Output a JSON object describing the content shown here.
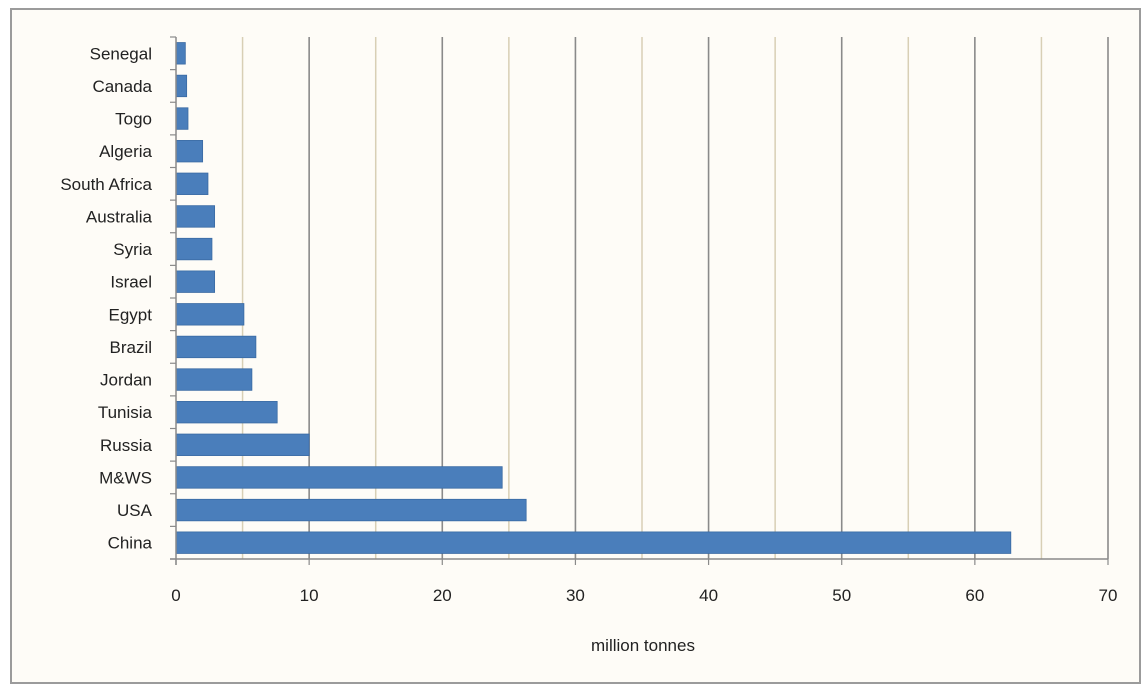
{
  "chart_data": {
    "type": "bar",
    "orientation": "horizontal",
    "categories": [
      "Senegal",
      "Canada",
      "Togo",
      "Algeria",
      "South Africa",
      "Australia",
      "Syria",
      "Israel",
      "Egypt",
      "Brazil",
      "Jordan",
      "Tunisia",
      "Russia",
      "M&WS",
      "USA",
      "China"
    ],
    "values": [
      0.7,
      0.8,
      0.9,
      2.0,
      2.4,
      2.9,
      2.7,
      2.9,
      5.1,
      6.0,
      5.7,
      7.6,
      10.0,
      24.5,
      26.3,
      62.7
    ],
    "title": "",
    "xlabel": "million tonnes",
    "ylabel": "",
    "xlim": [
      0,
      70
    ],
    "xticks": [
      0,
      10,
      20,
      30,
      40,
      50,
      60,
      70
    ],
    "grid": {
      "major": true,
      "minor": true,
      "minor_step": 5
    },
    "colors": {
      "bar": "#4a7ebb",
      "bar_edge": "#3a6aa3",
      "major_grid": "#8a8a8a",
      "minor_grid": "#d8cfb5",
      "axis": "#8a8a8a",
      "background": "#fefcf7",
      "frame": "#9b9b9b"
    }
  }
}
